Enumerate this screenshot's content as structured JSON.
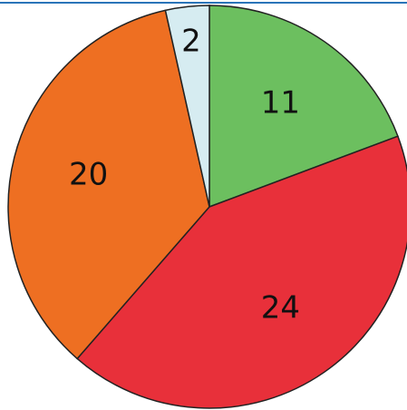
{
  "chart_data": {
    "type": "pie",
    "values": [
      11,
      24,
      20,
      2
    ],
    "colors": [
      "#6cbf5f",
      "#e8303a",
      "#ee6f22",
      "#d6ecf1"
    ]
  }
}
